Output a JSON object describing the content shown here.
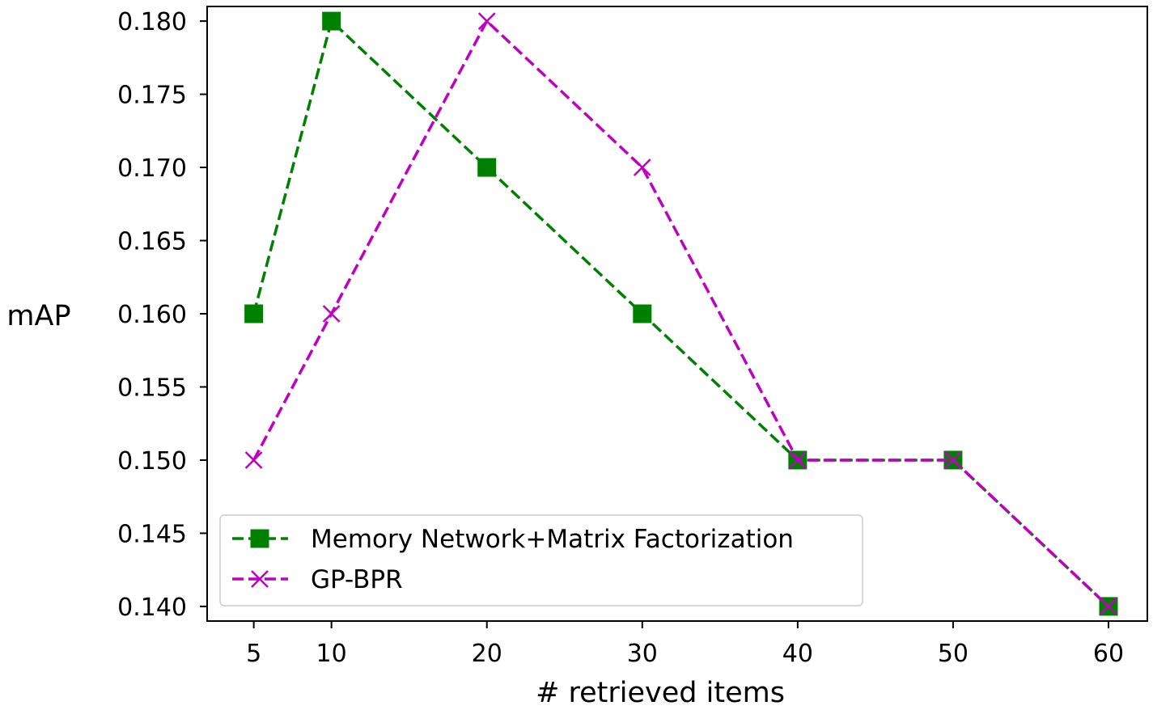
{
  "chart_data": {
    "type": "line",
    "xlabel": "# retrieved items",
    "ylabel": "mAP",
    "x": [
      5,
      10,
      20,
      30,
      40,
      50,
      60
    ],
    "xticks": [
      "5",
      "10",
      "20",
      "30",
      "40",
      "50",
      "60"
    ],
    "yticks": [
      "0.140",
      "0.145",
      "0.150",
      "0.155",
      "0.160",
      "0.165",
      "0.170",
      "0.175",
      "0.180"
    ],
    "xlim": [
      2.0,
      62.5
    ],
    "ylim": [
      0.139,
      0.181
    ],
    "grid": false,
    "legend": "lower-left",
    "series": [
      {
        "name": "Memory Network+Matrix Factorization",
        "values": [
          0.16,
          0.18,
          0.17,
          0.16,
          0.15,
          0.15,
          0.14
        ],
        "color": "#008000",
        "marker": "square",
        "linestyle": "dashed"
      },
      {
        "name": "GP-BPR",
        "values": [
          0.15,
          0.16,
          0.18,
          0.17,
          0.15,
          0.15,
          0.14
        ],
        "color": "#bf00bf",
        "marker": "x",
        "linestyle": "dashed"
      }
    ]
  }
}
